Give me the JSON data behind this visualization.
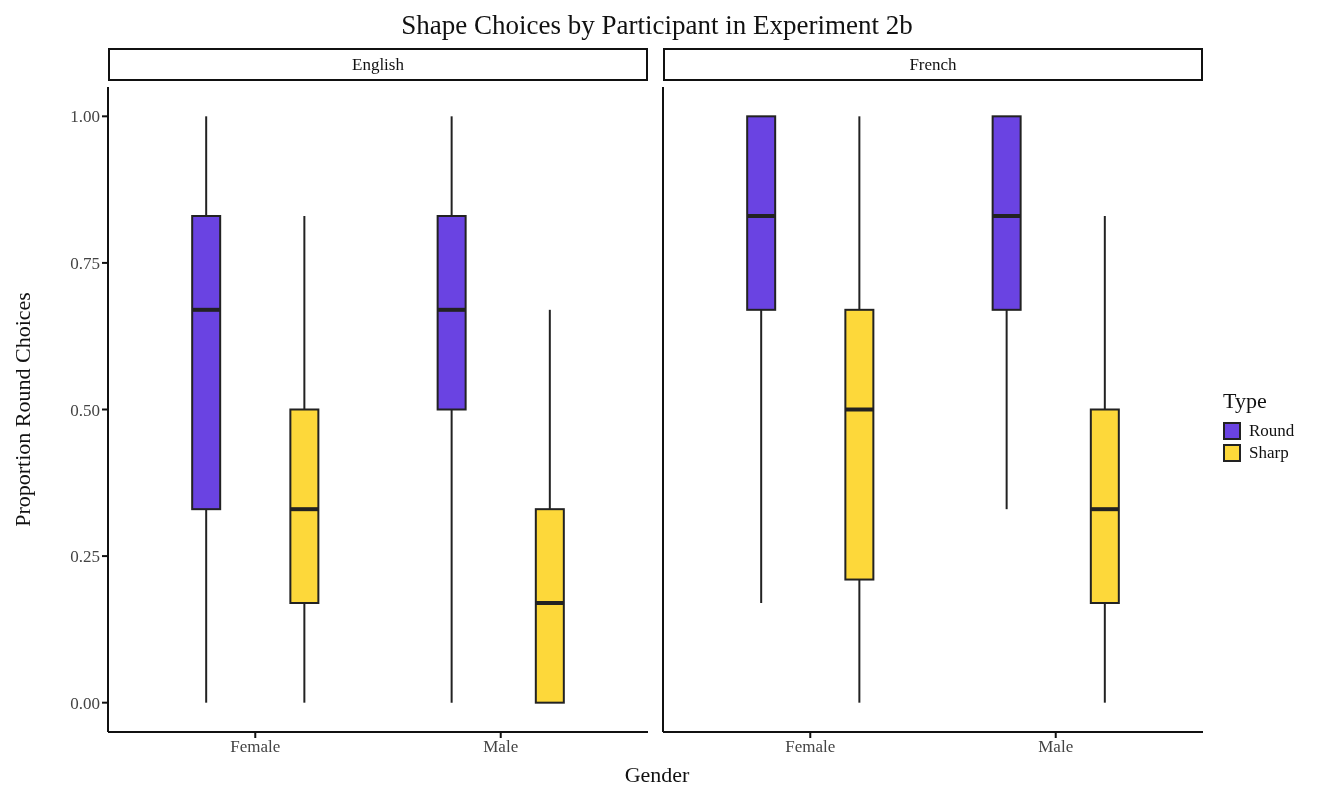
{
  "chart_data": [
    {
      "type": "box",
      "title": "Shape Choices by Participant in Experiment 2b",
      "subtitle": "English",
      "legend": "right",
      "legend_title": "Type",
      "xlabel": "Gender",
      "ylabel": "Proportion Round Choices",
      "categories": [
        "Female",
        "Male"
      ],
      "ylim": [
        -0.05,
        1.05
      ],
      "yticks": [
        {
          "value": 0,
          "label": "0.00"
        },
        {
          "value": 0.25,
          "label": "0.25"
        },
        {
          "value": 0.5,
          "label": "0.50"
        },
        {
          "value": 0.75,
          "label": "0.75"
        },
        {
          "value": 1,
          "label": "1.00"
        }
      ],
      "series": [
        {
          "name": "Round",
          "color": "#6a43e2",
          "boxes": [
            {
              "low": 0,
              "q1": 0.33,
              "median": 0.67,
              "q3": 0.83,
              "high": 1
            },
            {
              "low": 0,
              "q1": 0.5,
              "median": 0.67,
              "q3": 0.83,
              "high": 1
            }
          ]
        },
        {
          "name": "Sharp",
          "color": "#fdd83a",
          "boxes": [
            {
              "low": 0,
              "q1": 0.17,
              "median": 0.33,
              "q3": 0.5,
              "high": 0.83
            },
            {
              "low": 0,
              "q1": 0,
              "median": 0.17,
              "q3": 0.33,
              "high": 0.67
            }
          ]
        }
      ]
    },
    {
      "type": "box",
      "subtitle": "French",
      "tick_labels": "x",
      "categories": [
        "Female",
        "Male"
      ],
      "ylim": [
        -0.05,
        1.05
      ],
      "series": [
        {
          "color": "#6a43e2",
          "boxes": [
            {
              "low": 0.17,
              "q1": 0.67,
              "median": 0.83,
              "q3": 1,
              "high": 1
            },
            {
              "low": 0.33,
              "q1": 0.67,
              "median": 0.83,
              "q3": 1,
              "high": 1
            }
          ]
        },
        {
          "color": "#fdd83a",
          "boxes": [
            {
              "low": 0,
              "q1": 0.21,
              "median": 0.5,
              "q3": 0.67,
              "high": 1
            },
            {
              "low": 0,
              "q1": 0.17,
              "median": 0.33,
              "q3": 0.5,
              "high": 0.83
            }
          ]
        }
      ]
    }
  ]
}
